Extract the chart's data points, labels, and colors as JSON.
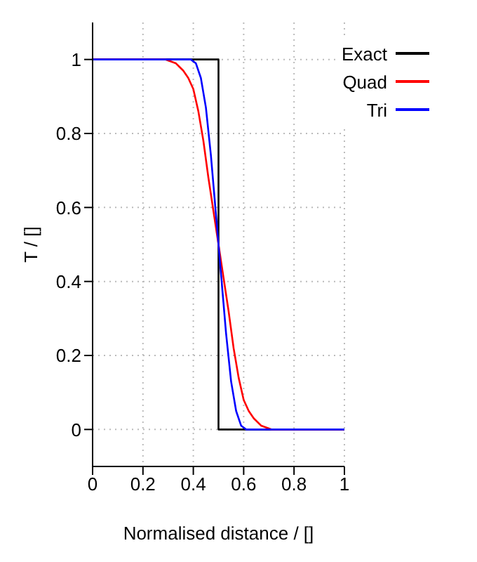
{
  "chart_data": {
    "type": "line",
    "xlabel": "Normalised distance / []",
    "ylabel": "T / []",
    "xlim": [
      0,
      1
    ],
    "ylim": [
      -0.1,
      1.1
    ],
    "xticks": [
      0,
      0.2,
      0.4,
      0.6,
      0.8,
      1
    ],
    "yticks": [
      0,
      0.2,
      0.4,
      0.6,
      0.8,
      1
    ],
    "grid": true,
    "legend": "top right",
    "marker": "none",
    "line_style": "solid",
    "series": [
      {
        "name": "Exact",
        "color": "#000000",
        "x": [
          0,
          0.5,
          0.5,
          1
        ],
        "values": [
          1,
          1,
          0,
          0
        ]
      },
      {
        "name": "Quad",
        "color": "#ff0000",
        "x": [
          0,
          0.29,
          0.33,
          0.36,
          0.38,
          0.4,
          0.42,
          0.44,
          0.46,
          0.48,
          0.5,
          0.52,
          0.54,
          0.56,
          0.58,
          0.6,
          0.62,
          0.64,
          0.67,
          0.71,
          1
        ],
        "values": [
          1,
          1,
          0.99,
          0.97,
          0.95,
          0.92,
          0.86,
          0.78,
          0.68,
          0.59,
          0.5,
          0.41,
          0.32,
          0.22,
          0.14,
          0.08,
          0.05,
          0.03,
          0.01,
          0,
          0
        ]
      },
      {
        "name": "Tri",
        "color": "#0000ff",
        "x": [
          0,
          0.39,
          0.41,
          0.43,
          0.45,
          0.47,
          0.49,
          0.5,
          0.51,
          0.53,
          0.55,
          0.57,
          0.59,
          0.61,
          1
        ],
        "values": [
          1,
          1,
          0.99,
          0.95,
          0.87,
          0.74,
          0.58,
          0.5,
          0.42,
          0.26,
          0.13,
          0.05,
          0.01,
          0,
          0
        ]
      }
    ]
  }
}
